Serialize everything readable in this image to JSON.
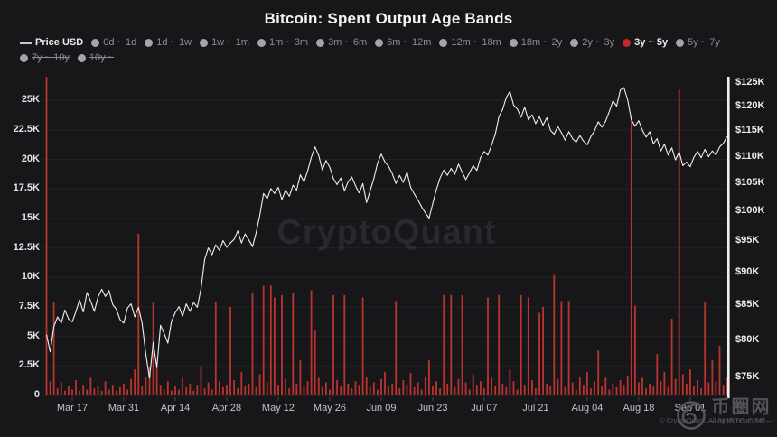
{
  "title": "Bitcoin: Spent Output Age Bands",
  "watermark": "CryptoQuant",
  "legend": {
    "items": [
      {
        "label": "Price USD",
        "marker": "line",
        "state": "active",
        "color": "#c6c6cc"
      },
      {
        "label": "0d ~ 1d",
        "marker": "dot",
        "state": "disabled"
      },
      {
        "label": "1d ~ 1w",
        "marker": "dot",
        "state": "disabled"
      },
      {
        "label": "1w ~ 1m",
        "marker": "dot",
        "state": "disabled"
      },
      {
        "label": "1m ~ 3m",
        "marker": "dot",
        "state": "disabled"
      },
      {
        "label": "3m ~ 6m",
        "marker": "dot",
        "state": "disabled"
      },
      {
        "label": "6m ~ 12m",
        "marker": "dot",
        "state": "disabled"
      },
      {
        "label": "12m ~ 18m",
        "marker": "dot",
        "state": "disabled"
      },
      {
        "label": "18m ~ 2y",
        "marker": "dot",
        "state": "disabled"
      },
      {
        "label": "2y ~ 3y",
        "marker": "dot",
        "state": "disabled"
      },
      {
        "label": "3y ~ 5y",
        "marker": "dot",
        "state": "active",
        "color": "#c62828"
      },
      {
        "label": "5y ~ 7y",
        "marker": "dot",
        "state": "disabled",
        "break_after": true
      },
      {
        "label": "7y ~ 10y",
        "marker": "dot",
        "state": "disabled"
      },
      {
        "label": "10y ~",
        "marker": "dot",
        "state": "disabled"
      }
    ]
  },
  "colors": {
    "background": "#17171a",
    "bar_red": "#bc332d",
    "price_line": "#f0f0f2",
    "legend_active_red": "#c62828",
    "grid": "rgba(255,255,255,0.05)",
    "axis_line_white": "#eef0f2",
    "muted_text": "#8c8c94"
  },
  "chart_data": {
    "type": "mixed",
    "title": "Bitcoin: Spent Output Age Bands",
    "x_unit": "daily, Mar 10 - Sep 11",
    "grid": "horizontal-faint",
    "legend_position": "top",
    "ylim_left": [
      0,
      27
    ],
    "ylim_right": [
      75,
      125
    ],
    "right_scale": "log",
    "x_ticks": [
      {
        "label": "Mar 17",
        "day": 7
      },
      {
        "label": "Mar 31",
        "day": 21
      },
      {
        "label": "Apr 14",
        "day": 35
      },
      {
        "label": "Apr 28",
        "day": 49
      },
      {
        "label": "May 12",
        "day": 63
      },
      {
        "label": "May 26",
        "day": 77
      },
      {
        "label": "Jun 09",
        "day": 91
      },
      {
        "label": "Jun 23",
        "day": 105
      },
      {
        "label": "Jul 07",
        "day": 119
      },
      {
        "label": "Jul 21",
        "day": 133
      },
      {
        "label": "Aug 04",
        "day": 147
      },
      {
        "label": "Aug 18",
        "day": 161
      },
      {
        "label": "Sep 01",
        "day": 175
      }
    ],
    "left_ticks": [
      {
        "label": "0",
        "value": 0
      },
      {
        "label": "2.5K",
        "value": 2.5
      },
      {
        "label": "5K",
        "value": 5
      },
      {
        "label": "7.5K",
        "value": 7.5
      },
      {
        "label": "10K",
        "value": 10
      },
      {
        "label": "12.5K",
        "value": 12.5
      },
      {
        "label": "15K",
        "value": 15
      },
      {
        "label": "17.5K",
        "value": 17.5
      },
      {
        "label": "20K",
        "value": 20
      },
      {
        "label": "22.5K",
        "value": 22.5
      },
      {
        "label": "25K",
        "value": 25
      }
    ],
    "right_ticks": [
      {
        "label": "$75K",
        "value": 75
      },
      {
        "label": "$80K",
        "value": 80
      },
      {
        "label": "$85K",
        "value": 85
      },
      {
        "label": "$90K",
        "value": 90
      },
      {
        "label": "$95K",
        "value": 95
      },
      {
        "label": "$100K",
        "value": 100
      },
      {
        "label": "$105K",
        "value": 105
      },
      {
        "label": "$110K",
        "value": 110
      },
      {
        "label": "$115K",
        "value": 115
      },
      {
        "label": "$120K",
        "value": 120
      },
      {
        "label": "$125K",
        "value": 125
      }
    ],
    "series": [
      {
        "name": "Price USD",
        "type": "line",
        "axis": "right",
        "color": "#f0f0f2",
        "unit": "USD thousands, day 0 = Mar 10",
        "values_daily": [
          80.8,
          78.4,
          81.9,
          83.3,
          82.4,
          84.3,
          83.0,
          82.6,
          84.1,
          85.8,
          84.0,
          86.9,
          85.6,
          84.1,
          86.2,
          87.4,
          86.3,
          87.2,
          85.1,
          84.4,
          82.9,
          82.4,
          84.6,
          85.2,
          83.3,
          84.7,
          82.4,
          78.1,
          74.9,
          79.7,
          76.3,
          82.1,
          80.9,
          79.6,
          82.7,
          83.9,
          84.8,
          83.4,
          85.2,
          84.1,
          85.4,
          84.7,
          87.5,
          92.1,
          93.9,
          92.8,
          94.4,
          93.5,
          95.1,
          94.0,
          94.7,
          95.3,
          96.7,
          94.7,
          96.2,
          95.2,
          94.1,
          96.4,
          99.4,
          103.2,
          102.3,
          104.1,
          103.2,
          104.3,
          102.1,
          103.8,
          102.7,
          104.7,
          103.8,
          106.6,
          105.3,
          107.3,
          109.9,
          111.9,
          110.2,
          107.5,
          109.3,
          108.0,
          105.9,
          104.8,
          106.0,
          103.7,
          105.3,
          106.2,
          104.6,
          103.3,
          105.0,
          101.6,
          103.7,
          105.9,
          108.8,
          110.5,
          109.0,
          108.2,
          106.8,
          105.0,
          106.5,
          105.2,
          107.1,
          104.3,
          103.1,
          102.0,
          100.8,
          99.8,
          98.9,
          101.4,
          103.9,
          106.0,
          107.5,
          106.5,
          107.8,
          106.7,
          108.6,
          107.1,
          105.7,
          107.0,
          108.3,
          107.4,
          109.8,
          111.0,
          110.3,
          112.2,
          114.4,
          117.9,
          119.4,
          121.9,
          123.2,
          120.3,
          119.5,
          117.8,
          119.9,
          117.3,
          118.3,
          116.5,
          117.9,
          116.2,
          117.7,
          115.2,
          114.4,
          115.9,
          114.7,
          113.2,
          114.9,
          113.5,
          112.8,
          114.1,
          113.0,
          112.3,
          113.9,
          115.1,
          116.9,
          115.8,
          117.0,
          119.0,
          121.2,
          120.1,
          123.5,
          124.0,
          121.4,
          117.3,
          116.0,
          117.1,
          115.2,
          113.8,
          114.9,
          112.5,
          113.5,
          111.1,
          112.4,
          110.3,
          111.7,
          109.4,
          110.9,
          108.3,
          109.0,
          108.1,
          109.9,
          111.0,
          109.8,
          111.4,
          110.0,
          111.1,
          110.3,
          111.9,
          112.6,
          113.9
        ]
      },
      {
        "name": "3y ~ 5y",
        "type": "bar",
        "axis": "left",
        "color": "#bc332d",
        "unit": "spent outputs, thousands, day 0 = Mar 10",
        "values_daily": [
          27,
          1.2,
          7.9,
          0.6,
          1.1,
          0.4,
          0.8,
          0.5,
          1.3,
          0.4,
          0.9,
          0.5,
          1.5,
          0.6,
          0.8,
          0.4,
          1.2,
          0.5,
          0.9,
          0.4,
          0.7,
          1.0,
          0.5,
          1.4,
          2.2,
          13.7,
          0.8,
          1.6,
          2.4,
          7.9,
          2.5,
          0.9,
          0.5,
          1.2,
          0.4,
          0.8,
          0.5,
          1.5,
          0.7,
          1.0,
          0.4,
          0.9,
          2.5,
          0.6,
          1.1,
          0.5,
          7.9,
          1.2,
          0.7,
          0.9,
          7.5,
          1.3,
          0.6,
          2.0,
          0.8,
          1.0,
          8.7,
          0.7,
          1.8,
          9.3,
          1.1,
          9.3,
          8.3,
          0.9,
          8.5,
          1.4,
          0.6,
          8.7,
          1.0,
          3.0,
          0.8,
          1.2,
          8.9,
          5.5,
          1.5,
          0.7,
          1.1,
          0.5,
          8.5,
          1.3,
          0.8,
          8.5,
          1.0,
          0.6,
          1.2,
          0.9,
          8.3,
          1.6,
          0.7,
          1.1,
          0.5,
          1.4,
          2.0,
          0.8,
          1.0,
          8.0,
          0.6,
          1.3,
          0.9,
          1.9,
          0.7,
          1.1,
          0.5,
          1.6,
          3.0,
          0.8,
          1.2,
          0.6,
          8.5,
          1.0,
          8.5,
          0.7,
          1.4,
          8.5,
          1.1,
          0.5,
          1.8,
          0.9,
          1.2,
          0.6,
          8.3,
          1.5,
          0.8,
          8.5,
          1.0,
          0.7,
          2.2,
          1.2,
          0.5,
          8.5,
          0.9,
          8.3,
          1.3,
          0.6,
          7.0,
          7.5,
          1.0,
          0.8,
          10.2,
          1.4,
          8.0,
          0.7,
          8.0,
          1.1,
          0.5,
          1.6,
          0.9,
          2.0,
          0.6,
          1.2,
          3.8,
          0.8,
          1.5,
          0.5,
          1.0,
          0.7,
          1.3,
          0.9,
          1.7,
          23.7,
          7.6,
          1.1,
          1.5,
          0.6,
          1.0,
          0.8,
          3.5,
          1.2,
          2.0,
          0.7,
          6.5,
          1.4,
          25.9,
          1.8,
          1.0,
          2.2,
          0.8,
          1.3,
          0.6,
          7.9,
          1.1,
          3.0,
          1.2,
          4.2,
          0.9,
          1.5
        ]
      }
    ]
  },
  "footer": {
    "copyright": "© CryptoQuant. All rights reserved",
    "site_name": "币圈网",
    "site_url": "—ALIBTC.COM—"
  }
}
